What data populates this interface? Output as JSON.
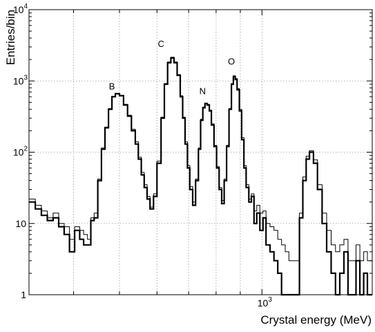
{
  "chart_data": {
    "type": "line",
    "title": "",
    "xlabel": "Crystal energy (MeV)",
    "ylabel": "Entries/bin",
    "x_scale": "log",
    "y_scale": "log",
    "xlim": [
      322,
      1710
    ],
    "ylim": [
      1,
      10000
    ],
    "grid": true,
    "y_ticks": [
      {
        "value": 1,
        "label": "1"
      },
      {
        "value": 10,
        "label": "10"
      },
      {
        "value": 100,
        "label": "10^2"
      },
      {
        "value": 1000,
        "label": "10^3"
      },
      {
        "value": 10000,
        "label": "10^4"
      }
    ],
    "x_ticks": [
      {
        "value": 1000,
        "label": "10^3"
      }
    ],
    "peak_labels": [
      {
        "text": "B",
        "x": 482,
        "y": 760
      },
      {
        "text": "C",
        "x": 612,
        "y": 3000
      },
      {
        "text": "N",
        "x": 749,
        "y": 650
      },
      {
        "text": "O",
        "x": 862,
        "y": 1700
      }
    ],
    "series": [
      {
        "style": "thick",
        "x": [
          322,
          332,
          342,
          352,
          362,
          372,
          382,
          392,
          402,
          412,
          420,
          428,
          435,
          442,
          450,
          458,
          466,
          474,
          482,
          490,
          500,
          510,
          520,
          530,
          540,
          548,
          556,
          564,
          572,
          580,
          590,
          600,
          612,
          622,
          632,
          642,
          652,
          662,
          672,
          680,
          688,
          696,
          704,
          714,
          724,
          734,
          742,
          750,
          758,
          766,
          774,
          782,
          792,
          802,
          812,
          822,
          832,
          842,
          852,
          862,
          870,
          878,
          886,
          896,
          906,
          916,
          926,
          938,
          950,
          962,
          975,
          990,
          1005,
          1020,
          1040,
          1060,
          1080,
          1100,
          1120,
          1140,
          1160,
          1180,
          1200,
          1220,
          1240,
          1260,
          1285,
          1310,
          1340,
          1370,
          1400,
          1430,
          1460,
          1490,
          1520,
          1550,
          1580,
          1610,
          1640,
          1670,
          1700
        ],
        "y": [
          20,
          16,
          13,
          11,
          12,
          9,
          7,
          4,
          8,
          6,
          5,
          5,
          11,
          12,
          40,
          110,
          220,
          400,
          600,
          660,
          620,
          460,
          320,
          200,
          130,
          80,
          48,
          32,
          22,
          16,
          24,
          70,
          300,
          900,
          1800,
          2100,
          1800,
          1200,
          600,
          300,
          130,
          60,
          30,
          18,
          40,
          110,
          280,
          420,
          480,
          460,
          380,
          240,
          120,
          60,
          30,
          19,
          40,
          120,
          400,
          900,
          1150,
          1050,
          750,
          380,
          150,
          60,
          32,
          20,
          24,
          10,
          14,
          8,
          12,
          5,
          4,
          3,
          2,
          1,
          1,
          1,
          1,
          1,
          12,
          40,
          80,
          100,
          70,
          30,
          10,
          4,
          2,
          1,
          2,
          4,
          1,
          1,
          3,
          1,
          2,
          1,
          1
        ]
      },
      {
        "style": "thin",
        "x": [
          322,
          332,
          342,
          352,
          362,
          372,
          382,
          392,
          402,
          412,
          420,
          428,
          435,
          442,
          450,
          458,
          466,
          474,
          482,
          490,
          500,
          510,
          520,
          530,
          540,
          548,
          556,
          564,
          572,
          580,
          590,
          600,
          612,
          622,
          632,
          642,
          652,
          662,
          672,
          680,
          688,
          696,
          704,
          714,
          724,
          734,
          742,
          750,
          758,
          766,
          774,
          782,
          792,
          802,
          812,
          822,
          832,
          842,
          852,
          862,
          870,
          878,
          886,
          896,
          906,
          916,
          926,
          938,
          950,
          962,
          975,
          990,
          1005,
          1020,
          1040,
          1060,
          1080,
          1100,
          1120,
          1140,
          1160,
          1180,
          1200,
          1220,
          1240,
          1260,
          1285,
          1310,
          1340,
          1370,
          1400,
          1430,
          1460,
          1490,
          1520,
          1550,
          1580,
          1610,
          1640,
          1670,
          1700
        ],
        "y": [
          22,
          18,
          15,
          12,
          14,
          10,
          9,
          6,
          9,
          8,
          7,
          6,
          12,
          14,
          42,
          115,
          225,
          410,
          610,
          670,
          630,
          470,
          330,
          210,
          140,
          85,
          52,
          35,
          24,
          17,
          26,
          75,
          310,
          920,
          1850,
          2150,
          1850,
          1230,
          620,
          310,
          140,
          65,
          33,
          20,
          42,
          115,
          290,
          430,
          490,
          470,
          390,
          250,
          125,
          63,
          32,
          21,
          42,
          125,
          410,
          920,
          1180,
          1080,
          780,
          400,
          160,
          65,
          35,
          22,
          26,
          15,
          18,
          14,
          15,
          10,
          9,
          8,
          6,
          5,
          4,
          3,
          3,
          3,
          14,
          45,
          88,
          105,
          78,
          35,
          14,
          8,
          5,
          4,
          5,
          6,
          3,
          3,
          5,
          3,
          4,
          3,
          3
        ]
      }
    ]
  }
}
